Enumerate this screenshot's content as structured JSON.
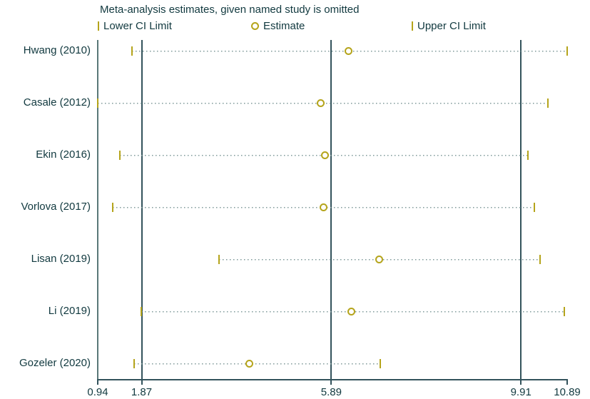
{
  "title": "Meta-analysis estimates, given named study is omitted",
  "legend": [
    {
      "marker": "bar",
      "label": "Lower CI Limit"
    },
    {
      "marker": "circle",
      "label": "Estimate"
    },
    {
      "marker": "bar",
      "label": "Upper CI Limit"
    }
  ],
  "chart_data": {
    "type": "scatter",
    "subtype": "leave-one-out-sensitivity-meta-analysis",
    "orientation": "horizontal",
    "title": "Meta-analysis estimates, given named study is omitted",
    "studies": [
      "Hwang (2010)",
      "Casale (2012)",
      "Ekin (2016)",
      "Vorlova (2017)",
      "Lisan (2019)",
      "Li (2019)",
      "Gozeler (2020)"
    ],
    "series": [
      {
        "name": "Lower CI Limit",
        "values": [
          1.67,
          0.94,
          1.41,
          1.26,
          3.51,
          1.86,
          1.71
        ]
      },
      {
        "name": "Estimate",
        "values": [
          6.25,
          5.67,
          5.75,
          5.72,
          6.9,
          6.31,
          4.16
        ]
      },
      {
        "name": "Upper CI Limit",
        "values": [
          10.89,
          10.48,
          10.06,
          10.19,
          10.32,
          10.83,
          6.93
        ]
      }
    ],
    "x_ticks": [
      0.94,
      1.87,
      5.89,
      9.91,
      10.89
    ],
    "x_tick_labels": [
      "0.94",
      "1.87",
      "5.89",
      "9.91",
      "10.89"
    ],
    "ref_lines": [
      1.87,
      5.89,
      9.91
    ],
    "frame_line": 0.94,
    "xlim": [
      0.94,
      10.89
    ],
    "grid": false,
    "legend_position": "top",
    "colors": {
      "marker": "#b5a41b",
      "dotted_line": "#7f9a9a",
      "ref_line": "#33535c",
      "frame_line": "#5a7878",
      "text": "#11393f",
      "background": "#ffffff"
    }
  }
}
